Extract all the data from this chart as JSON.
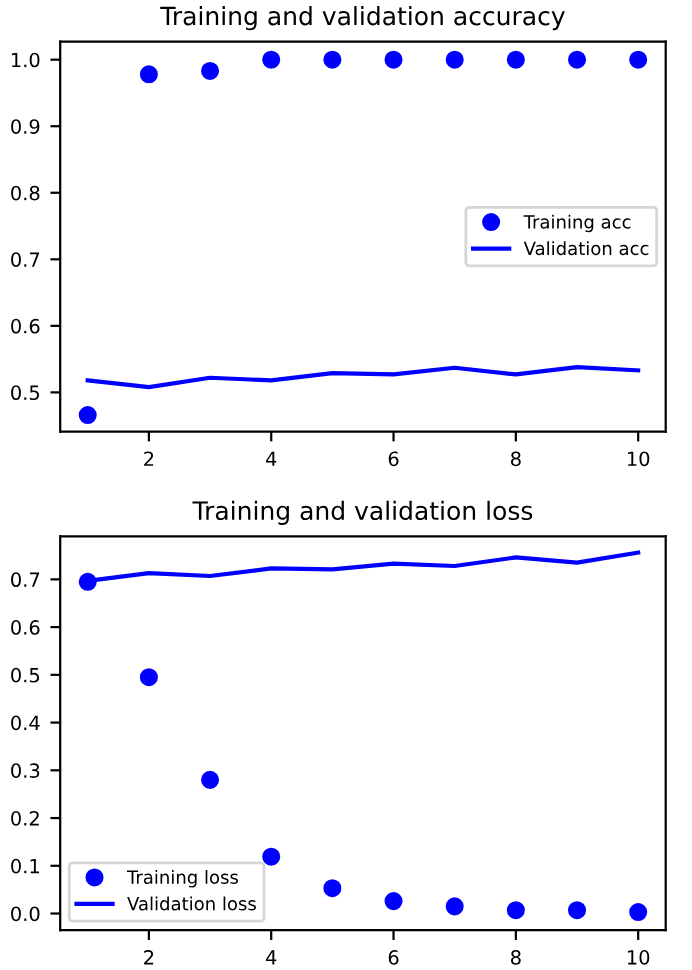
{
  "chart_data": [
    {
      "type": "line",
      "title": "Training and validation accuracy",
      "x": [
        1,
        2,
        3,
        4,
        5,
        6,
        7,
        8,
        9,
        10
      ],
      "xlim": [
        0.55,
        10.45
      ],
      "xticks": [
        2,
        4,
        6,
        8,
        10
      ],
      "ylim": [
        0.441,
        1.027
      ],
      "yticks": [
        0.5,
        0.6,
        0.7,
        0.8,
        0.9,
        {
          "value": 1,
          "label": "1.0"
        }
      ],
      "legend": "center right",
      "grid": false,
      "series": [
        {
          "name": "Training acc",
          "type": "scatter",
          "marker": "circle",
          "color": "#0000ff",
          "values": [
            0.466,
            0.978,
            0.983,
            1.0,
            1.0,
            1.0,
            1.0,
            1.0,
            1.0,
            1.0
          ]
        },
        {
          "name": "Validation acc",
          "type": "line",
          "color": "#0000ff",
          "values": [
            0.518,
            0.508,
            0.522,
            0.518,
            0.529,
            0.527,
            0.537,
            0.527,
            0.538,
            0.533
          ]
        }
      ]
    },
    {
      "type": "line",
      "title": "Training and validation loss",
      "x": [
        1,
        2,
        3,
        4,
        5,
        6,
        7,
        8,
        9,
        10
      ],
      "xlim": [
        0.55,
        10.45
      ],
      "xticks": [
        2,
        4,
        6,
        8,
        10
      ],
      "ylim": [
        -0.035,
        0.79
      ],
      "yticks": [
        {
          "value": 0,
          "label": "0.0"
        },
        0.1,
        0.2,
        0.3,
        0.4,
        0.5,
        0.6,
        0.7
      ],
      "legend": "lower left",
      "grid": false,
      "series": [
        {
          "name": "Training loss",
          "type": "scatter",
          "marker": "circle",
          "color": "#0000ff",
          "values": [
            0.695,
            0.495,
            0.28,
            0.119,
            0.053,
            0.026,
            0.015,
            0.007,
            0.007,
            0.003
          ]
        },
        {
          "name": "Validation loss",
          "type": "line",
          "color": "#0000ff",
          "values": [
            0.697,
            0.713,
            0.707,
            0.723,
            0.721,
            0.733,
            0.728,
            0.746,
            0.735,
            0.756
          ]
        }
      ]
    }
  ]
}
